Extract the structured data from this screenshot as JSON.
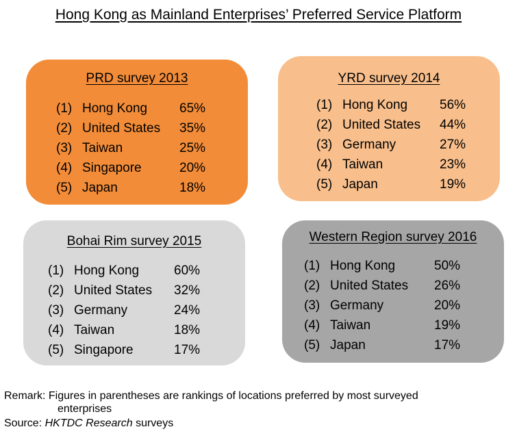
{
  "title": "Hong Kong as Mainland Enterprises’ Preferred Service Platform",
  "colors": {
    "prd": "#f28c38",
    "yrd": "#f8bf8c",
    "bohai": "#d9d9d9",
    "western": "#a6a6a6"
  },
  "chart_data": [
    {
      "type": "table",
      "title": "PRD survey 2013",
      "rows": [
        {
          "rank": "(1)",
          "location": "Hong Kong",
          "value": "65%"
        },
        {
          "rank": "(2)",
          "location": "United States",
          "value": "35%"
        },
        {
          "rank": "(3)",
          "location": "Taiwan",
          "value": "25%"
        },
        {
          "rank": "(4)",
          "location": "Singapore",
          "value": "20%"
        },
        {
          "rank": "(5)",
          "location": "Japan",
          "value": "18%"
        }
      ]
    },
    {
      "type": "table",
      "title": "YRD survey 2014",
      "rows": [
        {
          "rank": "(1)",
          "location": "Hong Kong",
          "value": "56%"
        },
        {
          "rank": "(2)",
          "location": "United States",
          "value": "44%"
        },
        {
          "rank": "(3)",
          "location": "Germany",
          "value": "27%"
        },
        {
          "rank": "(4)",
          "location": "Taiwan",
          "value": "23%"
        },
        {
          "rank": "(5)",
          "location": "Japan",
          "value": "19%"
        }
      ]
    },
    {
      "type": "table",
      "title": "Bohai Rim survey 2015",
      "rows": [
        {
          "rank": "(1)",
          "location": "Hong Kong",
          "value": "60%"
        },
        {
          "rank": "(2)",
          "location": "United States",
          "value": "32%"
        },
        {
          "rank": "(3)",
          "location": "Germany",
          "value": "24%"
        },
        {
          "rank": "(4)",
          "location": "Taiwan",
          "value": "18%"
        },
        {
          "rank": "(5)",
          "location": "Singapore",
          "value": "17%"
        }
      ]
    },
    {
      "type": "table",
      "title": "Western Region survey 2016",
      "rows": [
        {
          "rank": "(1)",
          "location": "Hong Kong",
          "value": "50%"
        },
        {
          "rank": "(2)",
          "location": "United States",
          "value": "26%"
        },
        {
          "rank": "(3)",
          "location": "Germany",
          "value": "20%"
        },
        {
          "rank": "(4)",
          "location": "Taiwan",
          "value": "19%"
        },
        {
          "rank": "(5)",
          "location": "Japan",
          "value": "17%"
        }
      ]
    }
  ],
  "remark": {
    "line1": "Remark: Figures in parentheses are rankings of locations preferred by most surveyed",
    "line2": "enterprises"
  },
  "source": {
    "prefix": "Source: ",
    "italic": "HKTDC Research",
    "suffix": " surveys"
  }
}
